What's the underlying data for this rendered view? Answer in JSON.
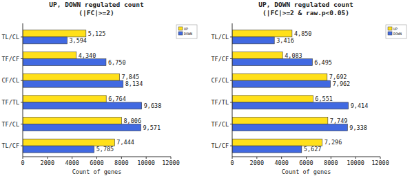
{
  "chart_data": [
    {
      "type": "bar",
      "orientation": "horizontal",
      "title": "UP, DOWN regulated count",
      "subtitle": "(|FC|>=2)",
      "x_label": "Count of genes",
      "categories": [
        "TL/CL",
        "TF/CF",
        "CF/CL",
        "TF/TL",
        "TF/CL",
        "TL/CF"
      ],
      "series": [
        {
          "name": "UP",
          "color": "#ffe01a",
          "values": [
            5125,
            4340,
            7845,
            6764,
            8006,
            7444
          ],
          "value_labels": [
            "5,125",
            "4,340",
            "7,845",
            "6,764",
            "8,006",
            "7,444"
          ]
        },
        {
          "name": "DOWN",
          "color": "#4169e1",
          "values": [
            3594,
            6750,
            8134,
            9638,
            9571,
            5785
          ],
          "value_labels": [
            "3,594",
            "6,750",
            "8,134",
            "9,638",
            "9,571",
            "5,785"
          ]
        }
      ],
      "xlim": [
        0,
        12000
      ],
      "xticks": [
        0,
        2000,
        4000,
        6000,
        8000,
        10000,
        12000
      ],
      "grid": false,
      "legend": "upper right",
      "data_labels": true
    },
    {
      "type": "bar",
      "orientation": "horizontal",
      "title": "UP, DOWN regulated count",
      "subtitle": "(|FC|>=2 & raw.p<0.05)",
      "x_label": "Count of genes",
      "categories": [
        "TL/CL",
        "TF/CF",
        "CF/CL",
        "TF/TL",
        "TF/CL",
        "TL/CF"
      ],
      "series": [
        {
          "name": "UP",
          "color": "#ffe01a",
          "values": [
            4850,
            4083,
            7692,
            6551,
            7749,
            7296
          ],
          "value_labels": [
            "4,850",
            "4,083",
            "7,692",
            "6,551",
            "7,749",
            "7,296"
          ]
        },
        {
          "name": "DOWN",
          "color": "#4169e1",
          "values": [
            3416,
            6495,
            7962,
            9414,
            9338,
            5627
          ],
          "value_labels": [
            "3,416",
            "6,495",
            "7,962",
            "9,414",
            "9,338",
            "5,627"
          ]
        }
      ],
      "xlim": [
        0,
        12000
      ],
      "xticks": [
        0,
        2000,
        4000,
        6000,
        8000,
        10000,
        12000
      ],
      "grid": false,
      "legend": "upper right",
      "data_labels": true
    }
  ]
}
